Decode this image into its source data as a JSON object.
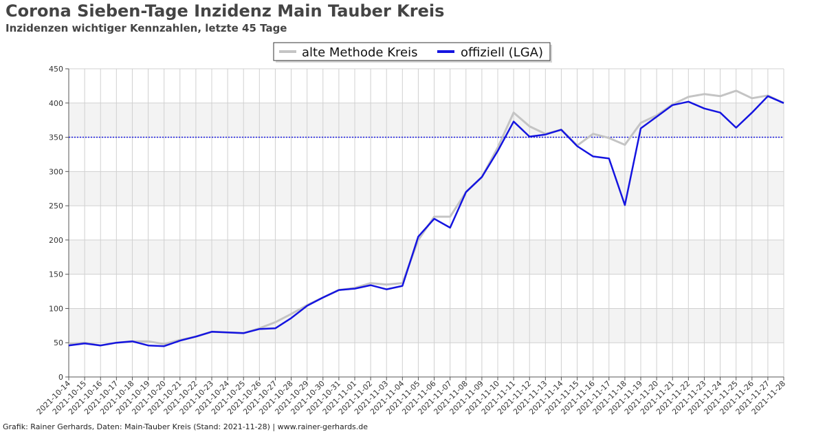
{
  "header": {
    "title": "Corona Sieben-Tage Inzidenz Main Tauber Kreis",
    "subtitle": "Inzidenzen wichtiger Kennzahlen, letzte 45 Tage"
  },
  "footer": {
    "credit": "Grafik: Rainer Gerhards, Daten: Main-Tauber Kreis (Stand: 2021-11-28) | www.rainer-gerhards.de"
  },
  "colors": {
    "old_method": "#c4c4c4",
    "official": "#1414e0",
    "threshold": "#1414e0",
    "band": "#f3f3f3",
    "grid": "#d0d0d0"
  },
  "chart_data": {
    "type": "line",
    "title": "Corona Sieben-Tage Inzidenz Main Tauber Kreis",
    "subtitle": "Inzidenzen wichtiger Kennzahlen, letzte 45 Tage",
    "xlabel": "",
    "ylabel": "",
    "ylim": [
      0,
      450
    ],
    "yticks": [
      0,
      50,
      100,
      150,
      200,
      250,
      300,
      350,
      400,
      450
    ],
    "grid": true,
    "legend_position": "top-center",
    "threshold": 350,
    "categories": [
      "2021-10-14",
      "2021-10-15",
      "2021-10-16",
      "2021-10-17",
      "2021-10-18",
      "2021-10-19",
      "2021-10-20",
      "2021-10-21",
      "2021-10-22",
      "2021-10-23",
      "2021-10-24",
      "2021-10-25",
      "2021-10-26",
      "2021-10-27",
      "2021-10-28",
      "2021-10-29",
      "2021-10-30",
      "2021-10-31",
      "2021-11-01",
      "2021-11-02",
      "2021-11-03",
      "2021-11-04",
      "2021-11-05",
      "2021-11-06",
      "2021-11-07",
      "2021-11-08",
      "2021-11-09",
      "2021-11-10",
      "2021-11-11",
      "2021-11-12",
      "2021-11-13",
      "2021-11-14",
      "2021-11-15",
      "2021-11-16",
      "2021-11-17",
      "2021-11-18",
      "2021-11-19",
      "2021-11-20",
      "2021-11-21",
      "2021-11-22",
      "2021-11-23",
      "2021-11-24",
      "2021-11-25",
      "2021-11-26",
      "2021-11-27",
      "2021-11-28"
    ],
    "series": [
      {
        "name": "alte Methode Kreis",
        "values": [
          48,
          50,
          46,
          50,
          52,
          52,
          48,
          54,
          59,
          66,
          65,
          64,
          71,
          80,
          92,
          105,
          116,
          127,
          130,
          137,
          135,
          137,
          200,
          234,
          234,
          270,
          292,
          335,
          386,
          366,
          355,
          361,
          338,
          355,
          349,
          339,
          371,
          382,
          398,
          409,
          413,
          410,
          418,
          407,
          411,
          400
        ]
      },
      {
        "name": "offiziell (LGA)",
        "values": [
          46,
          49,
          46,
          50,
          52,
          46,
          45,
          53,
          59,
          66,
          65,
          64,
          70,
          71,
          86,
          104,
          116,
          127,
          129,
          134,
          128,
          133,
          205,
          231,
          218,
          270,
          292,
          330,
          373,
          351,
          354,
          361,
          337,
          322,
          319,
          251,
          363,
          380,
          397,
          402,
          392,
          386,
          364,
          386,
          410,
          400
        ]
      }
    ]
  }
}
